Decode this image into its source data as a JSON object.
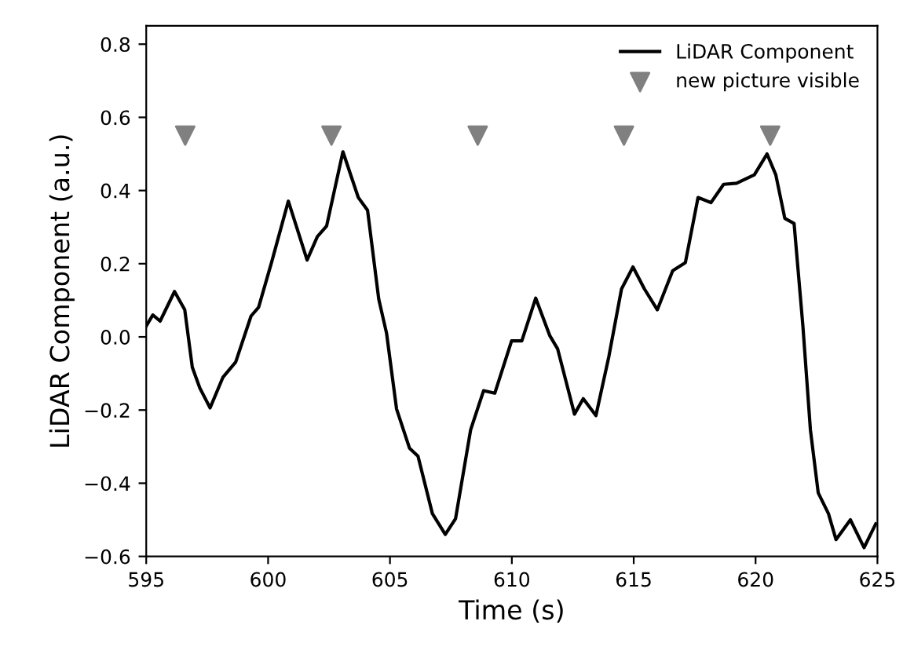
{
  "chart_data": {
    "type": "line",
    "xlabel": "Time (s)",
    "ylabel": "LiDAR Component (a.u.)",
    "xlim": [
      595,
      625
    ],
    "xticks": [
      595,
      600,
      605,
      610,
      615,
      620,
      625
    ],
    "ylim": [
      -0.6,
      0.85
    ],
    "yticks": [
      {
        "value": -0.6,
        "label": "−0.6"
      },
      {
        "value": -0.4,
        "label": "−0.4"
      },
      {
        "value": -0.2,
        "label": "−0.2"
      },
      {
        "value": 0.0,
        "label": "0.0"
      },
      {
        "value": 0.2,
        "label": "0.2"
      },
      {
        "value": 0.4,
        "label": "0.4"
      },
      {
        "value": 0.6,
        "label": "0.6"
      },
      {
        "value": 0.8,
        "label": "0.8"
      }
    ],
    "grid": false,
    "legend": "top right",
    "series": [
      {
        "name": "LiDAR Component",
        "color": "#000000",
        "line_style": "solid",
        "marker": "none",
        "x": [
          595.0,
          595.27,
          595.57,
          596.16,
          596.58,
          596.89,
          597.2,
          597.62,
          598.15,
          598.67,
          599.3,
          599.61,
          600.14,
          600.83,
          601.6,
          602.02,
          602.4,
          603.07,
          603.7,
          604.08,
          604.54,
          604.86,
          605.27,
          605.8,
          606.15,
          606.74,
          607.27,
          607.69,
          608.31,
          608.84,
          609.3,
          609.99,
          610.41,
          610.98,
          611.56,
          611.88,
          612.57,
          612.93,
          613.45,
          613.98,
          614.5,
          614.97,
          615.44,
          615.97,
          616.6,
          617.12,
          617.64,
          618.17,
          618.69,
          619.22,
          619.95,
          620.47,
          620.83,
          621.2,
          621.58,
          621.94,
          622.25,
          622.57,
          622.99,
          623.3,
          623.89,
          624.45,
          624.93
        ],
        "values": [
          0.03,
          0.06,
          0.043,
          0.124,
          0.074,
          -0.083,
          -0.14,
          -0.194,
          -0.11,
          -0.069,
          0.057,
          0.081,
          0.203,
          0.371,
          0.21,
          0.274,
          0.303,
          0.506,
          0.381,
          0.346,
          0.103,
          0.01,
          -0.197,
          -0.304,
          -0.326,
          -0.483,
          -0.54,
          -0.497,
          -0.254,
          -0.147,
          -0.154,
          -0.011,
          -0.011,
          0.106,
          0.003,
          -0.033,
          -0.211,
          -0.169,
          -0.215,
          -0.054,
          0.131,
          0.191,
          0.131,
          0.074,
          0.181,
          0.203,
          0.381,
          0.367,
          0.417,
          0.42,
          0.443,
          0.5,
          0.443,
          0.324,
          0.31,
          0.031,
          -0.254,
          -0.426,
          -0.483,
          -0.554,
          -0.5,
          -0.576,
          -0.511
        ]
      },
      {
        "name": "new picture visible",
        "type": "scatter",
        "color": "#808080",
        "marker": "triangle",
        "x": [
          596.6,
          602.6,
          608.6,
          614.6,
          620.6
        ],
        "values": [
          0.55,
          0.55,
          0.55,
          0.55,
          0.55
        ]
      }
    ]
  }
}
